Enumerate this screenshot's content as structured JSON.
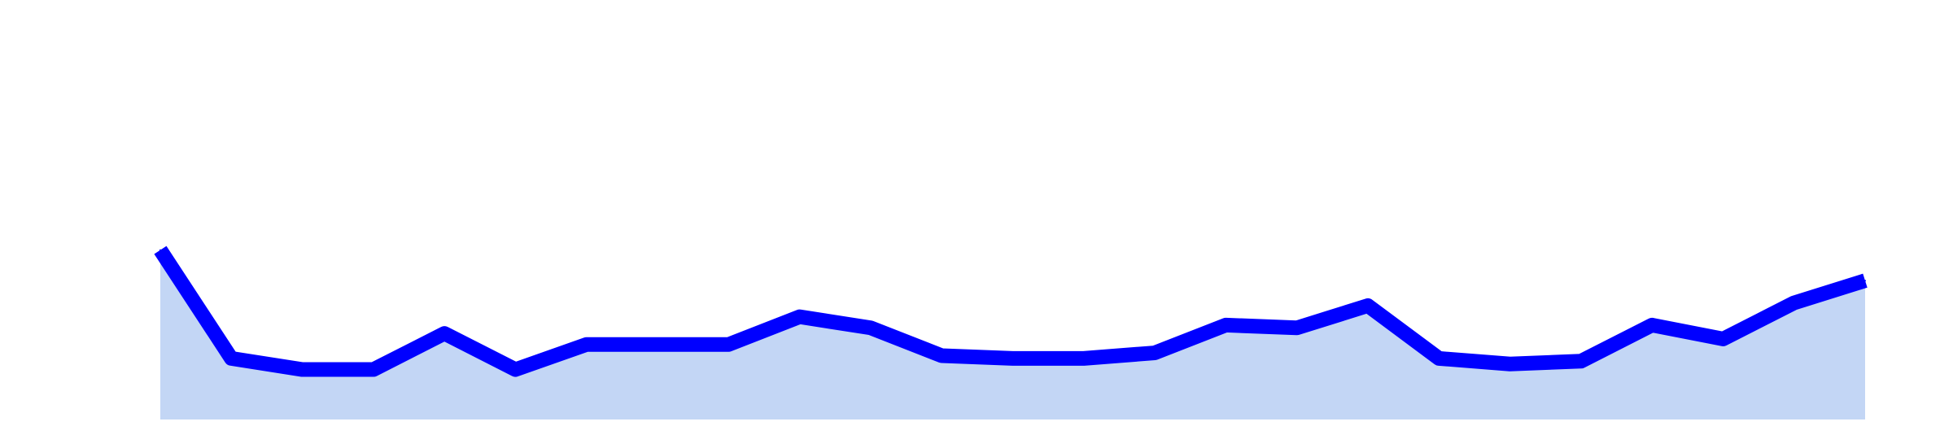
{
  "chart_data": {
    "type": "area",
    "x": [
      1,
      2,
      3,
      4,
      5,
      6,
      7,
      8,
      9,
      10,
      11,
      12,
      13,
      14,
      15,
      16,
      17,
      18,
      19,
      20,
      21,
      22,
      23,
      24,
      25
    ],
    "series": [
      {
        "values": [
          54,
          15,
          11,
          11,
          24,
          11,
          20,
          20,
          20,
          30,
          26,
          16,
          15,
          15,
          17,
          27,
          26,
          34,
          15,
          13,
          14,
          27,
          22,
          35,
          43
        ]
      }
    ],
    "ylim": [
      -14,
      144
    ],
    "grid": false,
    "legend": "none",
    "colors": {
      "line": "#0000ff",
      "fill": "#c3d6f5",
      "background": "#ffffff"
    }
  }
}
